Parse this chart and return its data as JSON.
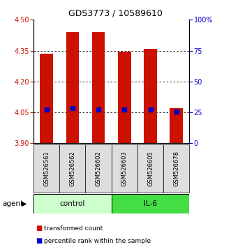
{
  "title": "GDS3773 / 10589610",
  "samples": [
    "GSM526561",
    "GSM526562",
    "GSM526602",
    "GSM526603",
    "GSM526605",
    "GSM526678"
  ],
  "bar_tops": [
    4.335,
    4.44,
    4.44,
    4.345,
    4.36,
    4.07
  ],
  "bar_bottom": 3.9,
  "blue_values": [
    4.065,
    4.07,
    4.065,
    4.065,
    4.065,
    4.055
  ],
  "left_ylim": [
    3.9,
    4.5
  ],
  "right_ylim": [
    0,
    100
  ],
  "left_yticks": [
    3.9,
    4.05,
    4.2,
    4.35,
    4.5
  ],
  "right_yticks": [
    0,
    25,
    50,
    75,
    100
  ],
  "right_yticklabels": [
    "0",
    "25",
    "50",
    "75",
    "100%"
  ],
  "hlines": [
    4.05,
    4.2,
    4.35
  ],
  "control_label": "control",
  "il6_label": "IL-6",
  "agent_label": "agent",
  "legend_red": "transformed count",
  "legend_blue": "percentile rank within the sample",
  "bar_color": "#CC1100",
  "blue_color": "#0000CC",
  "control_bg": "#CCFFCC",
  "il6_bg": "#44DD44",
  "sample_bg": "#DDDDDD",
  "bar_width": 0.5,
  "blue_marker_size": 4
}
